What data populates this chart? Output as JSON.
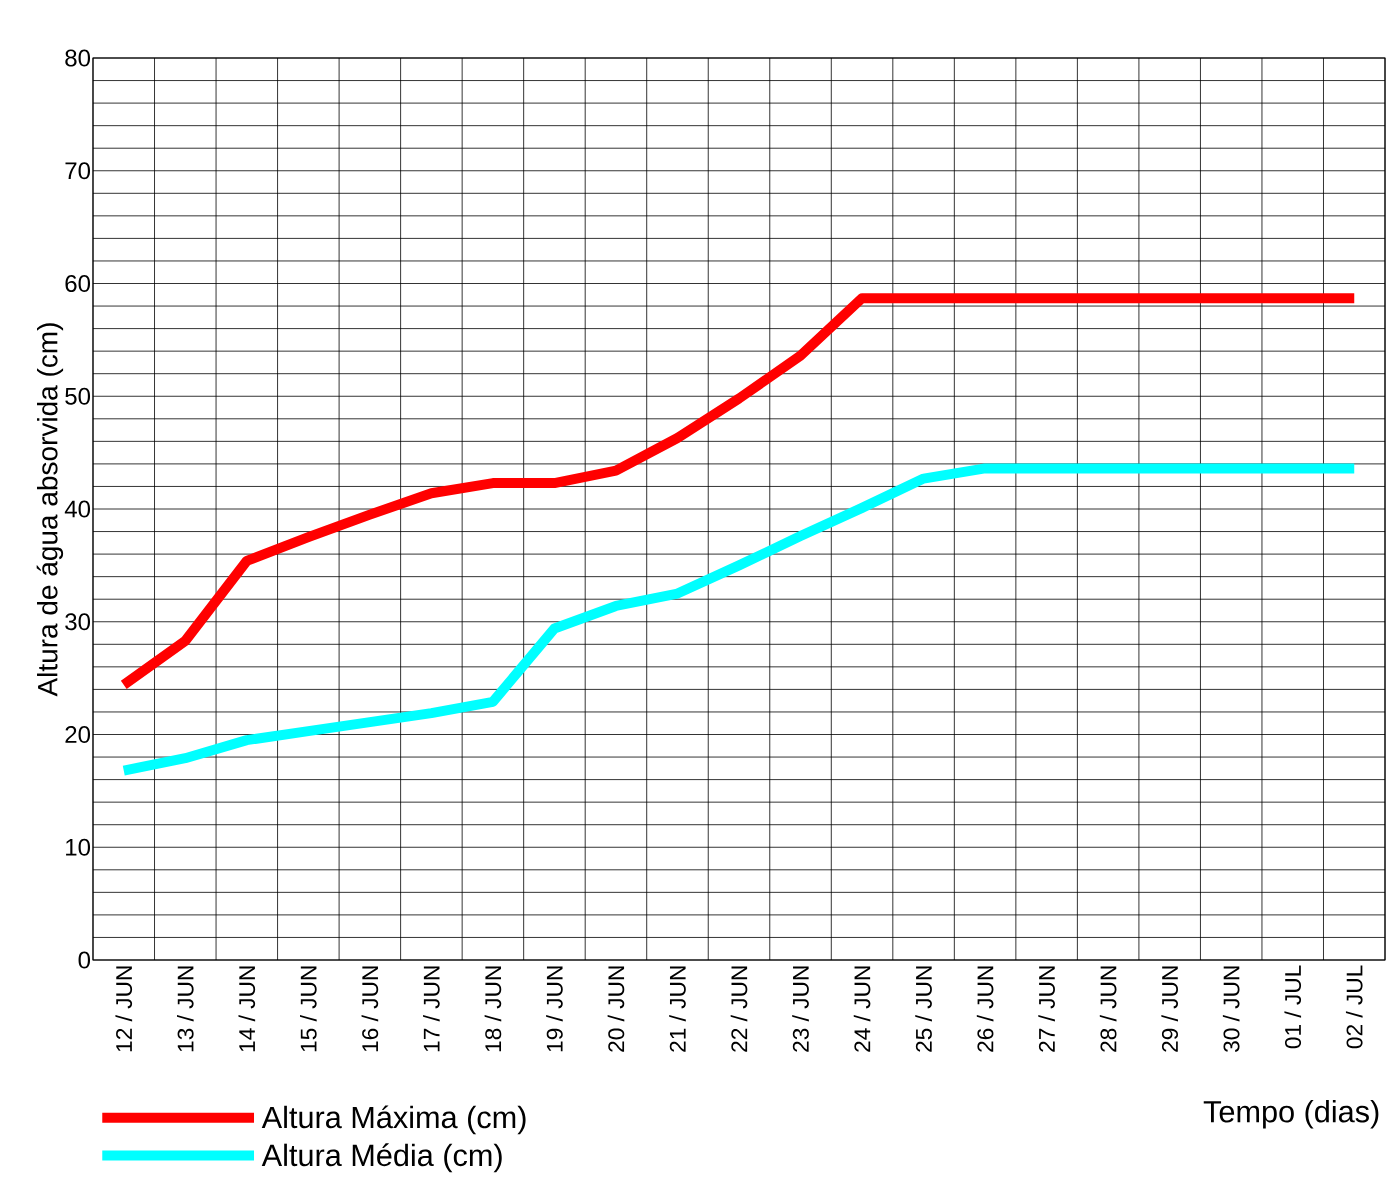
{
  "chart_data": {
    "type": "line",
    "xlabel": "Tempo (dias)",
    "ylabel": "Altura de água absorvida (cm)",
    "categories": [
      "12 / JUN",
      "13 / JUN",
      "14 / JUN",
      "15 / JUN",
      "16 / JUN",
      "17 / JUN",
      "18 / JUN",
      "19 / JUN",
      "20 / JUN",
      "21 / JUN",
      "22 / JUN",
      "23 / JUN",
      "24 / JUN",
      "25 / JUN",
      "26 / JUN",
      "27 / JUN",
      "28 / JUN",
      "29 / JUN",
      "30 / JUN",
      "01 / JUL",
      "02 / JUL"
    ],
    "series": [
      {
        "name": "Altura Máxima (cm)",
        "color": "#ff0000",
        "values": [
          24.4,
          28.3,
          35.4,
          37.5,
          39.5,
          41.4,
          42.3,
          42.3,
          43.4,
          46.3,
          49.8,
          53.6,
          58.7,
          58.7,
          58.7,
          58.7,
          58.7,
          58.7,
          58.7,
          58.7,
          58.7
        ]
      },
      {
        "name": "Altura Média (cm)",
        "color": "#00ffff",
        "values": [
          16.8,
          17.9,
          19.5,
          20.3,
          21.1,
          21.9,
          22.9,
          29.4,
          31.4,
          32.5,
          35.0,
          37.6,
          40.1,
          42.7,
          43.6,
          43.6,
          43.6,
          43.6,
          43.6,
          43.6,
          43.6
        ]
      }
    ],
    "ylim": [
      0,
      80
    ],
    "yticks": [
      0,
      10,
      20,
      30,
      40,
      50,
      60,
      70,
      80
    ],
    "grid": true,
    "legend": "bottom left",
    "line_style": "solid"
  }
}
